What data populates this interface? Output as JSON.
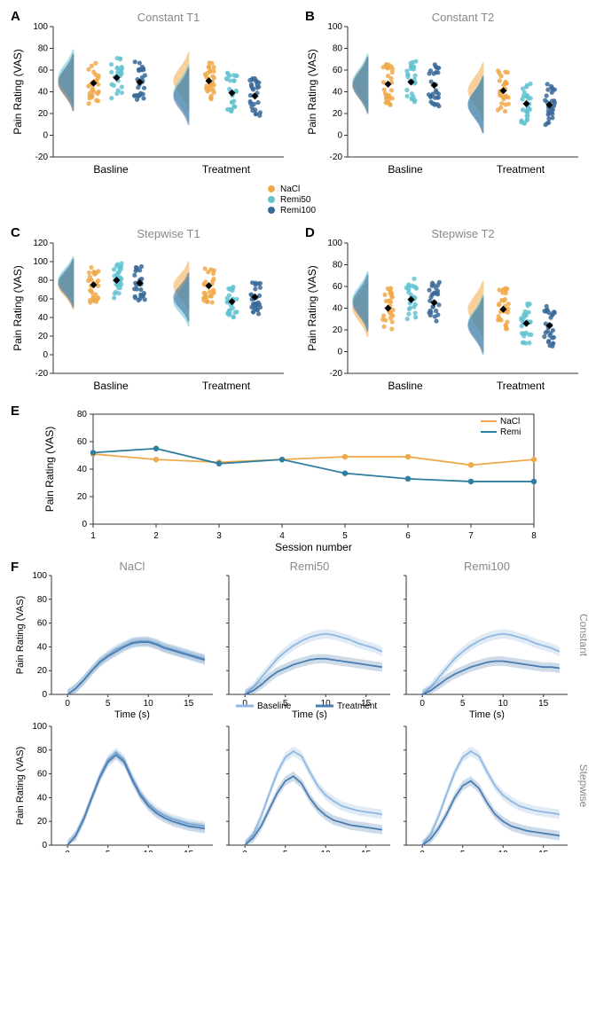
{
  "colors": {
    "nacl": "#f0a94a",
    "remi50": "#64c3d1",
    "remi100": "#3a6a9a",
    "nacl_line": "#f0a94a",
    "remi_line": "#2d7ea0",
    "baseline_line": "#8fb8e0",
    "treatment_line": "#4a7db0",
    "axis": "#333333",
    "title": "#888888",
    "tick": "#000000"
  },
  "fonts": {
    "axis_label": 12,
    "tick": 10,
    "title": 13,
    "legend": 10,
    "panel_label": 15
  },
  "panelsABCD": [
    {
      "id": "A",
      "title": "Constant T1",
      "ylabel": "Pain Rating (VAS)",
      "ylim": [
        -20,
        100
      ],
      "yticks": [
        -20,
        0,
        20,
        40,
        60,
        80,
        100
      ],
      "groups": [
        "Basline",
        "Treatment"
      ],
      "means": {
        "Basline": {
          "nacl": 48,
          "remi50": 53,
          "remi100": 49
        },
        "Treatment": {
          "nacl": 50,
          "remi50": 39,
          "remi100": 36
        }
      },
      "sem": 2.5
    },
    {
      "id": "B",
      "title": "Constant T2",
      "ylabel": "Pain Rating (VAS)",
      "ylim": [
        -20,
        100
      ],
      "yticks": [
        -20,
        0,
        20,
        40,
        60,
        80,
        100
      ],
      "groups": [
        "Basline",
        "Treatment"
      ],
      "means": {
        "Basline": {
          "nacl": 47,
          "remi50": 49,
          "remi100": 46
        },
        "Treatment": {
          "nacl": 41,
          "remi50": 29,
          "remi100": 28
        }
      },
      "sem": 2.5
    },
    {
      "id": "C",
      "title": "Stepwise T1",
      "ylabel": "Pain Rating (VAS)",
      "ylim": [
        -20,
        120
      ],
      "yticks": [
        -20,
        0,
        20,
        40,
        60,
        80,
        100,
        120
      ],
      "groups": [
        "Basline",
        "Treatment"
      ],
      "means": {
        "Basline": {
          "nacl": 75,
          "remi50": 80,
          "remi100": 77
        },
        "Treatment": {
          "nacl": 74,
          "remi50": 57,
          "remi100": 62
        }
      },
      "sem": 3
    },
    {
      "id": "D",
      "title": "Stepwise T2",
      "ylabel": "Pain Rating (VAS)",
      "ylim": [
        -20,
        100
      ],
      "yticks": [
        -20,
        0,
        20,
        40,
        60,
        80,
        100
      ],
      "groups": [
        "Basline",
        "Treatment"
      ],
      "means": {
        "Basline": {
          "nacl": 40,
          "remi50": 48,
          "remi100": 45
        },
        "Treatment": {
          "nacl": 39,
          "remi50": 26,
          "remi100": 24
        }
      },
      "sem": 3
    }
  ],
  "legendABCD": {
    "items": [
      {
        "label": "NaCl",
        "color_key": "nacl"
      },
      {
        "label": "Remi50",
        "color_key": "remi50"
      },
      {
        "label": "Remi100",
        "color_key": "remi100"
      }
    ]
  },
  "panelE": {
    "id": "E",
    "ylabel": "Pain Rating (VAS)",
    "xlabel": "Session number",
    "ylim": [
      0,
      80
    ],
    "yticks": [
      0,
      20,
      40,
      60,
      80
    ],
    "xticks": [
      1,
      2,
      3,
      4,
      5,
      6,
      7,
      8
    ],
    "series": [
      {
        "label": "NaCl",
        "color_key": "nacl_line",
        "x": [
          1,
          2,
          3,
          4,
          5,
          6,
          7,
          8
        ],
        "y": [
          51,
          47,
          45,
          47,
          49,
          49,
          43,
          47
        ],
        "err": [
          2,
          2,
          2,
          2,
          2,
          2,
          2,
          2
        ]
      },
      {
        "label": "Remi",
        "color_key": "remi_line",
        "x": [
          1,
          2,
          3,
          4,
          5,
          6,
          7,
          8
        ],
        "y": [
          52,
          55,
          44,
          47,
          37,
          33,
          31,
          31
        ],
        "err": [
          2,
          2,
          2,
          2,
          2,
          2,
          2,
          2
        ]
      }
    ]
  },
  "panelF": {
    "id": "F",
    "ylabel": "Pain Rating (VAS)",
    "xlabel": "Time (s)",
    "ylim": [
      0,
      100
    ],
    "yticks": [
      0,
      20,
      40,
      60,
      80,
      100
    ],
    "xlim": [
      -2,
      18
    ],
    "xticks": [
      0,
      5,
      10,
      15
    ],
    "col_titles": [
      "NaCl",
      "Remi50",
      "Remi100"
    ],
    "row_titles": [
      "Constant",
      "Stepwise"
    ],
    "legend": [
      {
        "label": "Baseline",
        "color_key": "baseline_line"
      },
      {
        "label": "Treatment",
        "color_key": "treatment_line"
      }
    ],
    "cells": [
      [
        {
          "baseline": {
            "t": [
              0,
              1,
              2,
              3,
              4,
              5,
              6,
              7,
              8,
              9,
              10,
              11,
              12,
              13,
              14,
              15,
              16,
              17
            ],
            "y": [
              0,
              5,
              12,
              20,
              28,
              33,
              38,
              41,
              44,
              45,
              45,
              43,
              40,
              38,
              36,
              34,
              32,
              30
            ]
          },
          "treatment": {
            "t": [
              0,
              1,
              2,
              3,
              4,
              5,
              6,
              7,
              8,
              9,
              10,
              11,
              12,
              13,
              14,
              15,
              16,
              17
            ],
            "y": [
              0,
              5,
              12,
              20,
              27,
              32,
              36,
              40,
              43,
              44,
              44,
              42,
              39,
              37,
              35,
              33,
              31,
              29
            ]
          }
        },
        {
          "baseline": {
            "t": [
              0,
              1,
              2,
              3,
              4,
              5,
              6,
              7,
              8,
              9,
              10,
              11,
              12,
              13,
              14,
              15,
              16,
              17
            ],
            "y": [
              0,
              6,
              14,
              22,
              30,
              36,
              41,
              45,
              48,
              50,
              51,
              50,
              48,
              46,
              43,
              41,
              39,
              36
            ]
          },
          "treatment": {
            "t": [
              0,
              1,
              2,
              3,
              4,
              5,
              6,
              7,
              8,
              9,
              10,
              11,
              12,
              13,
              14,
              15,
              16,
              17
            ],
            "y": [
              0,
              3,
              8,
              14,
              19,
              22,
              25,
              27,
              29,
              30,
              30,
              29,
              28,
              27,
              26,
              25,
              24,
              23
            ]
          }
        },
        {
          "baseline": {
            "t": [
              0,
              1,
              2,
              3,
              4,
              5,
              6,
              7,
              8,
              9,
              10,
              11,
              12,
              13,
              14,
              15,
              16,
              17
            ],
            "y": [
              0,
              6,
              14,
              22,
              30,
              36,
              41,
              45,
              48,
              50,
              51,
              50,
              48,
              46,
              43,
              41,
              39,
              36
            ]
          },
          "treatment": {
            "t": [
              0,
              1,
              2,
              3,
              4,
              5,
              6,
              7,
              8,
              9,
              10,
              11,
              12,
              13,
              14,
              15,
              16,
              17
            ],
            "y": [
              0,
              3,
              8,
              13,
              17,
              20,
              23,
              25,
              27,
              28,
              28,
              27,
              26,
              25,
              24,
              23,
              23,
              22
            ]
          }
        }
      ],
      [
        {
          "baseline": {
            "t": [
              0,
              1,
              2,
              3,
              4,
              5,
              6,
              7,
              8,
              9,
              10,
              11,
              12,
              13,
              14,
              15,
              16,
              17
            ],
            "y": [
              0,
              8,
              22,
              40,
              58,
              72,
              78,
              72,
              57,
              44,
              35,
              29,
              25,
              22,
              20,
              18,
              17,
              16
            ]
          },
          "treatment": {
            "t": [
              0,
              1,
              2,
              3,
              4,
              5,
              6,
              7,
              8,
              9,
              10,
              11,
              12,
              13,
              14,
              15,
              16,
              17
            ],
            "y": [
              0,
              8,
              22,
              40,
              57,
              70,
              76,
              70,
              55,
              42,
              33,
              27,
              23,
              20,
              18,
              16,
              15,
              14
            ]
          }
        },
        {
          "baseline": {
            "t": [
              0,
              1,
              2,
              3,
              4,
              5,
              6,
              7,
              8,
              9,
              10,
              11,
              12,
              13,
              14,
              15,
              16,
              17
            ],
            "y": [
              0,
              9,
              24,
              43,
              61,
              74,
              79,
              75,
              62,
              50,
              42,
              37,
              33,
              31,
              29,
              28,
              27,
              26
            ]
          },
          "treatment": {
            "t": [
              0,
              1,
              2,
              3,
              4,
              5,
              6,
              7,
              8,
              9,
              10,
              11,
              12,
              13,
              14,
              15,
              16,
              17
            ],
            "y": [
              0,
              6,
              16,
              30,
              44,
              54,
              58,
              52,
              40,
              31,
              25,
              21,
              19,
              17,
              16,
              15,
              14,
              13
            ]
          }
        },
        {
          "baseline": {
            "t": [
              0,
              1,
              2,
              3,
              4,
              5,
              6,
              7,
              8,
              9,
              10,
              11,
              12,
              13,
              14,
              15,
              16,
              17
            ],
            "y": [
              0,
              9,
              24,
              43,
              61,
              74,
              79,
              75,
              62,
              50,
              42,
              37,
              33,
              31,
              29,
              28,
              27,
              26
            ]
          },
          "treatment": {
            "t": [
              0,
              1,
              2,
              3,
              4,
              5,
              6,
              7,
              8,
              9,
              10,
              11,
              12,
              13,
              14,
              15,
              16,
              17
            ],
            "y": [
              0,
              5,
              14,
              26,
              40,
              50,
              54,
              48,
              36,
              26,
              20,
              16,
              14,
              12,
              11,
              10,
              9,
              8
            ]
          }
        }
      ]
    ],
    "band": 4
  }
}
